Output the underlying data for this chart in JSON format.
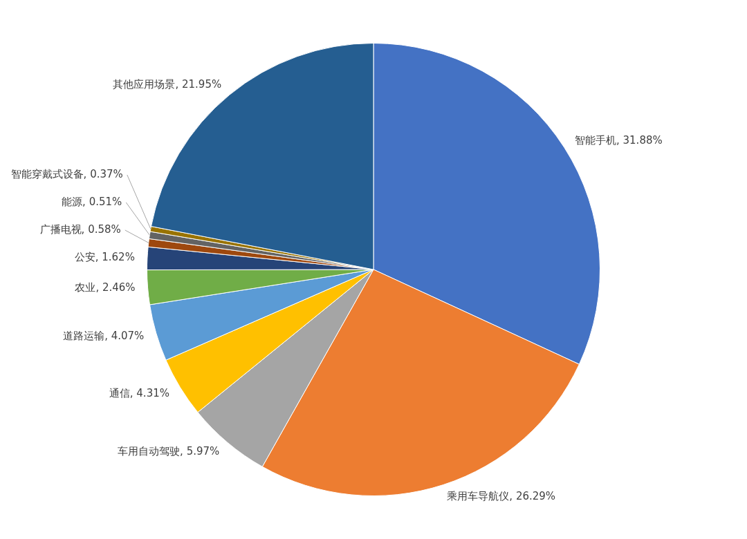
{
  "chart_data": {
    "type": "pie",
    "categories": [
      "智能手机",
      "乘用车导航仪",
      "车用自动驾驶",
      "通信",
      "道路运输",
      "农业",
      "公安",
      "广播电视",
      "能源",
      "智能穿戴式设备",
      "其他应用场景"
    ],
    "values": [
      31.88,
      26.29,
      5.97,
      4.31,
      4.07,
      2.46,
      1.62,
      0.58,
      0.51,
      0.37,
      21.95
    ],
    "value_labels": [
      "31.88%",
      "26.29%",
      "5.97%",
      "4.31%",
      "4.07%",
      "2.46%",
      "1.62%",
      "0.58%",
      "0.51%",
      "0.37%",
      "21.95%"
    ],
    "colors": [
      "#4472c4",
      "#ed7d31",
      "#a5a5a5",
      "#ffc000",
      "#5b9bd5",
      "#70ad47",
      "#264478",
      "#9e480e",
      "#636363",
      "#997300",
      "#255e91"
    ],
    "legend": false
  }
}
